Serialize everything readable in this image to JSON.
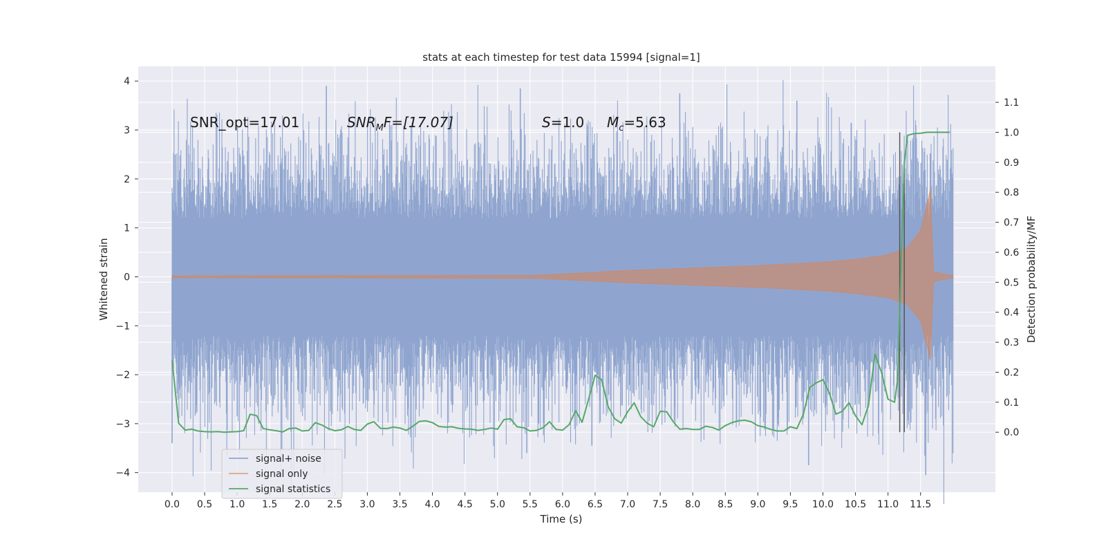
{
  "chart_data": {
    "type": "line",
    "title": "stats at each timestep for test data 15994 [signal=1]",
    "xlabel": "Time (s)",
    "ylabel": "Whitened strain",
    "y2label": "Detection probability/MF",
    "xlim": [
      -0.52,
      12.65
    ],
    "ylim": [
      -4.4,
      4.3
    ],
    "y2lim": [
      -0.2,
      1.22
    ],
    "x_ticks": [
      "0.0",
      "0.5",
      "1.0",
      "1.5",
      "2.0",
      "2.5",
      "3.0",
      "3.5",
      "4.0",
      "4.5",
      "5.0",
      "5.5",
      "6.0",
      "6.5",
      "7.0",
      "7.5",
      "8.0",
      "8.5",
      "9.0",
      "9.5",
      "10.0",
      "10.5",
      "11.0",
      "11.5"
    ],
    "y_ticks": [
      "4",
      "3",
      "2",
      "1",
      "0",
      "−1",
      "−2",
      "−3",
      "−4"
    ],
    "y2_ticks": [
      "1.1",
      "1.0",
      "0.9",
      "0.8",
      "0.7",
      "0.6",
      "0.5",
      "0.4",
      "0.3",
      "0.2",
      "0.1",
      "0.0"
    ],
    "annotations": [
      {
        "text": "SNR_opt=17.01"
      },
      {
        "base": "SNR",
        "sub": "M",
        "tail": "F=[17.07]"
      },
      {
        "base": "S",
        "sub": "",
        "tail": "=1.0"
      },
      {
        "base": "M",
        "sub": "c",
        "tail": "=5.63"
      }
    ],
    "legend": {
      "location": "lower-left",
      "entries": [
        "signal+ noise",
        "signal only",
        "signal statistics"
      ]
    },
    "colors": {
      "noise": "#8fa5cf",
      "signal": "#dd8452",
      "stats": "#55a868",
      "vline": "#555555",
      "background": "#eaeaf2",
      "grid": "#ffffff"
    },
    "series": [
      {
        "name": "signal+ noise",
        "note": "whitened strain, approx. gaussian noise band",
        "t_range": [
          0.0,
          12.0
        ],
        "upper_envelope_typical": 2.2,
        "lower_envelope_typical": -2.2,
        "peaks": [
          [
            0.05,
            2.5
          ],
          [
            2.37,
            3.9
          ],
          [
            5.35,
            3.85
          ],
          [
            7.8,
            3.75
          ],
          [
            9.6,
            3.6
          ],
          [
            -0.0,
            -3.4
          ],
          [
            5.45,
            -3.6
          ],
          [
            6.45,
            -3.45
          ],
          [
            9.78,
            -3.85
          ],
          [
            11.58,
            -4.05
          ]
        ]
      },
      {
        "name": "signal only",
        "note": "chirp amplitude envelope (growing until merger)",
        "envelope": [
          {
            "t": 0.0,
            "amp": 0.02
          },
          {
            "t": 5.5,
            "amp": 0.03
          },
          {
            "t": 6.0,
            "amp": 0.06
          },
          {
            "t": 7.0,
            "amp": 0.13
          },
          {
            "t": 8.0,
            "amp": 0.18
          },
          {
            "t": 9.0,
            "amp": 0.23
          },
          {
            "t": 10.0,
            "amp": 0.3
          },
          {
            "t": 10.5,
            "amp": 0.36
          },
          {
            "t": 11.0,
            "amp": 0.45
          },
          {
            "t": 11.3,
            "amp": 0.6
          },
          {
            "t": 11.5,
            "amp": 0.95
          },
          {
            "t": 11.62,
            "amp": 1.6
          },
          {
            "t": 11.65,
            "amp": 1.8
          },
          {
            "t": 11.7,
            "amp": 0.1
          },
          {
            "t": 12.0,
            "amp": 0.02
          }
        ]
      },
      {
        "name": "signal statistics",
        "axis": "right",
        "x": [
          0.0,
          0.1,
          0.2,
          0.3,
          0.4,
          0.5,
          0.6,
          0.7,
          0.8,
          0.9,
          1.0,
          1.1,
          1.2,
          1.3,
          1.4,
          1.5,
          1.6,
          1.7,
          1.8,
          1.9,
          2.0,
          2.1,
          2.2,
          2.3,
          2.4,
          2.5,
          2.6,
          2.7,
          2.8,
          2.9,
          3.0,
          3.1,
          3.2,
          3.3,
          3.4,
          3.5,
          3.6,
          3.7,
          3.8,
          3.9,
          4.0,
          4.1,
          4.2,
          4.3,
          4.4,
          4.5,
          4.6,
          4.7,
          4.8,
          4.9,
          5.0,
          5.1,
          5.2,
          5.3,
          5.4,
          5.5,
          5.6,
          5.7,
          5.8,
          5.9,
          6.0,
          6.1,
          6.2,
          6.3,
          6.4,
          6.5,
          6.6,
          6.7,
          6.8,
          6.9,
          7.0,
          7.1,
          7.2,
          7.3,
          7.4,
          7.5,
          7.6,
          7.7,
          7.8,
          7.9,
          8.0,
          8.1,
          8.2,
          8.3,
          8.4,
          8.5,
          8.6,
          8.7,
          8.8,
          8.9,
          9.0,
          9.1,
          9.2,
          9.3,
          9.4,
          9.5,
          9.6,
          9.7,
          9.8,
          9.9,
          10.0,
          10.1,
          10.2,
          10.3,
          10.4,
          10.5,
          10.6,
          10.7,
          10.8,
          10.9,
          11.0,
          11.1,
          11.15,
          11.2,
          11.25,
          11.3,
          11.4,
          11.5,
          11.6,
          11.7,
          11.8,
          11.9,
          11.95
        ],
        "y": [
          0.24,
          0.03,
          0.007,
          0.01,
          0.004,
          0.002,
          0.001,
          0.002,
          0.0,
          0.001,
          0.002,
          0.005,
          0.06,
          0.055,
          0.012,
          0.008,
          0.005,
          0.001,
          0.012,
          0.014,
          0.004,
          0.006,
          0.032,
          0.024,
          0.012,
          0.005,
          0.008,
          0.019,
          0.009,
          0.006,
          0.027,
          0.035,
          0.013,
          0.012,
          0.017,
          0.014,
          0.006,
          0.02,
          0.036,
          0.038,
          0.032,
          0.019,
          0.017,
          0.018,
          0.013,
          0.011,
          0.01,
          0.006,
          0.009,
          0.014,
          0.01,
          0.042,
          0.045,
          0.018,
          0.015,
          0.004,
          0.006,
          0.015,
          0.035,
          0.009,
          0.007,
          0.025,
          0.072,
          0.033,
          0.11,
          0.19,
          0.175,
          0.085,
          0.045,
          0.03,
          0.068,
          0.098,
          0.052,
          0.03,
          0.018,
          0.07,
          0.068,
          0.035,
          0.01,
          0.012,
          0.009,
          0.009,
          0.02,
          0.016,
          0.007,
          0.022,
          0.032,
          0.038,
          0.04,
          0.035,
          0.022,
          0.017,
          0.009,
          0.004,
          0.004,
          0.018,
          0.012,
          0.06,
          0.15,
          0.165,
          0.175,
          0.13,
          0.06,
          0.07,
          0.098,
          0.055,
          0.025,
          0.09,
          0.26,
          0.2,
          0.11,
          0.1,
          0.18,
          0.55,
          0.9,
          0.99,
          0.996,
          0.997,
          1.0,
          1.0,
          1.0,
          1.0,
          1.0
        ]
      }
    ],
    "vlines": [
      {
        "x": 11.18,
        "y2_from": 0.0,
        "y2_to": 1.0
      },
      {
        "x": 11.25,
        "y2_from": 0.0,
        "y2_to": 0.88
      }
    ]
  }
}
